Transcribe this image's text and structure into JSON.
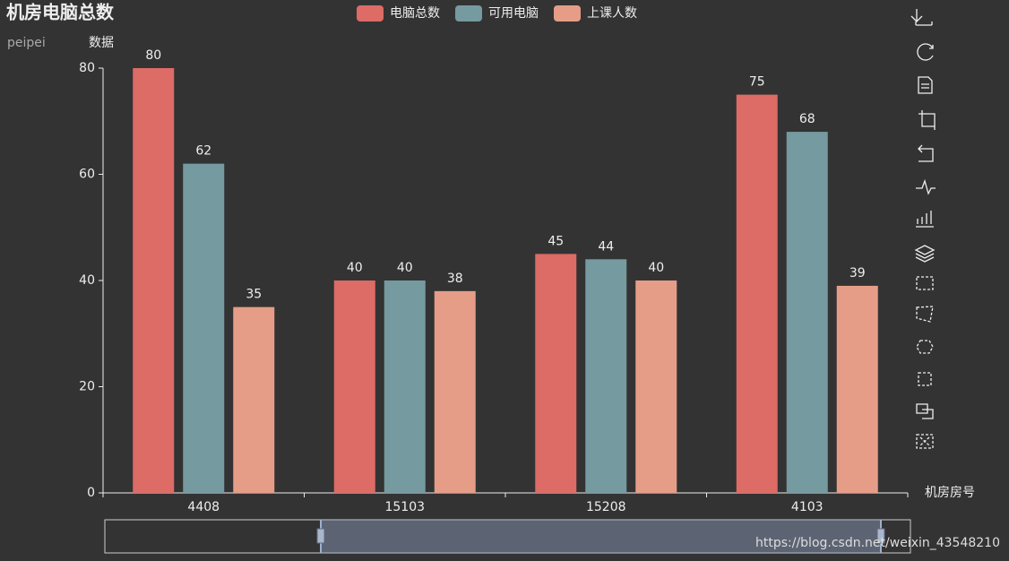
{
  "chart_data": {
    "type": "bar",
    "title": "机房电脑总数",
    "subtitle": "peipei",
    "y_axis_label": "数据",
    "x_axis_label": "机房房号",
    "categories": [
      "4408",
      "15103",
      "15208",
      "4103"
    ],
    "series": [
      {
        "name": "电脑总数",
        "color": "#dd6b66",
        "values": [
          80,
          40,
          45,
          75
        ]
      },
      {
        "name": "可用电脑",
        "color": "#759aa0",
        "values": [
          62,
          40,
          44,
          68
        ]
      },
      {
        "name": "上课人数",
        "color": "#e69d87",
        "values": [
          35,
          38,
          40,
          39
        ]
      }
    ],
    "ylim": [
      0,
      80
    ],
    "yticks": [
      0,
      20,
      40,
      60,
      80
    ],
    "grid": false,
    "legend": "top",
    "watermark": "https://blog.csdn.net/weixin_43548210"
  }
}
